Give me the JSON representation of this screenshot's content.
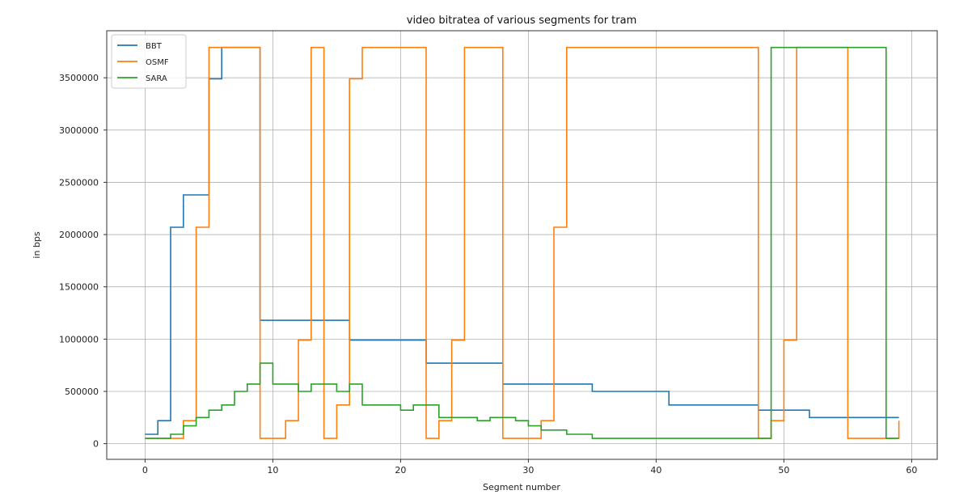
{
  "chart_data": {
    "type": "line",
    "step": "post",
    "title": "video bitratea of various segments for tram",
    "xlabel": "Segment number",
    "ylabel": "in bps",
    "xlim": [
      -3,
      62
    ],
    "ylim": [
      -150000,
      3950000
    ],
    "xticks": [
      0,
      10,
      20,
      30,
      40,
      50,
      60
    ],
    "yticks": [
      0,
      500000,
      1000000,
      1500000,
      2000000,
      2500000,
      3000000,
      3500000
    ],
    "grid": true,
    "legend": "top-left",
    "series": [
      {
        "name": "BBT",
        "color": "#1f77b4",
        "x": [
          0,
          1,
          2,
          3,
          4,
          5,
          6,
          9,
          10,
          11,
          12,
          13,
          14,
          15,
          16,
          17,
          18,
          19,
          20,
          21,
          22,
          23,
          24,
          25,
          26,
          27,
          28,
          29,
          30,
          31,
          32,
          33,
          34,
          35,
          36,
          37,
          38,
          39,
          40,
          41,
          42,
          43,
          44,
          45,
          46,
          47,
          48,
          49,
          50,
          51,
          52,
          53,
          54,
          55,
          56,
          57,
          58,
          59
        ],
        "values": [
          90000,
          220000,
          2070000,
          2380000,
          2380000,
          3490000,
          3790000,
          1180000,
          1180000,
          1180000,
          1180000,
          1180000,
          1180000,
          1180000,
          990000,
          990000,
          990000,
          990000,
          990000,
          990000,
          770000,
          770000,
          770000,
          770000,
          770000,
          770000,
          570000,
          570000,
          570000,
          570000,
          570000,
          570000,
          570000,
          500000,
          500000,
          500000,
          500000,
          500000,
          500000,
          370000,
          370000,
          370000,
          370000,
          370000,
          370000,
          370000,
          320000,
          320000,
          320000,
          320000,
          250000,
          250000,
          250000,
          250000,
          250000,
          250000,
          250000,
          250000
        ]
      },
      {
        "name": "OSMF",
        "color": "#ff7f0e",
        "x": [
          0,
          1,
          2,
          3,
          4,
          5,
          6,
          7,
          8,
          9,
          10,
          11,
          12,
          13,
          14,
          15,
          16,
          17,
          18,
          19,
          20,
          21,
          22,
          23,
          24,
          25,
          26,
          27,
          28,
          29,
          30,
          31,
          32,
          33,
          34,
          35,
          36,
          37,
          38,
          39,
          40,
          41,
          42,
          43,
          44,
          45,
          46,
          47,
          48,
          49,
          50,
          51,
          52,
          53,
          54,
          55,
          56,
          57,
          58,
          59
        ],
        "values": [
          50000,
          50000,
          50000,
          220000,
          2070000,
          3790000,
          3790000,
          3790000,
          3790000,
          50000,
          50000,
          220000,
          990000,
          3790000,
          50000,
          370000,
          3490000,
          3790000,
          3790000,
          3790000,
          3790000,
          3790000,
          50000,
          220000,
          990000,
          3790000,
          3790000,
          3790000,
          50000,
          50000,
          50000,
          220000,
          2070000,
          3790000,
          3790000,
          3790000,
          3790000,
          3790000,
          3790000,
          3790000,
          3790000,
          3790000,
          3790000,
          3790000,
          3790000,
          3790000,
          3790000,
          3790000,
          50000,
          220000,
          990000,
          3790000,
          3790000,
          3790000,
          3790000,
          50000,
          50000,
          50000,
          50000,
          220000
        ]
      },
      {
        "name": "SARA",
        "color": "#2ca02c",
        "x": [
          0,
          1,
          2,
          3,
          4,
          5,
          6,
          7,
          8,
          9,
          10,
          11,
          12,
          13,
          14,
          15,
          16,
          17,
          18,
          19,
          20,
          21,
          22,
          23,
          24,
          25,
          26,
          27,
          28,
          29,
          30,
          31,
          32,
          33,
          34,
          35,
          36,
          37,
          38,
          39,
          40,
          41,
          42,
          43,
          44,
          45,
          46,
          47,
          48,
          49,
          50,
          51,
          52,
          53,
          54,
          55,
          56,
          57,
          58,
          59
        ],
        "values": [
          50000,
          50000,
          90000,
          170000,
          250000,
          320000,
          370000,
          500000,
          570000,
          770000,
          570000,
          570000,
          500000,
          570000,
          570000,
          500000,
          570000,
          370000,
          370000,
          370000,
          320000,
          370000,
          370000,
          250000,
          250000,
          250000,
          220000,
          250000,
          250000,
          220000,
          170000,
          130000,
          130000,
          90000,
          90000,
          50000,
          50000,
          50000,
          50000,
          50000,
          50000,
          50000,
          50000,
          50000,
          50000,
          50000,
          50000,
          50000,
          50000,
          3790000,
          3790000,
          3790000,
          3790000,
          3790000,
          3790000,
          3790000,
          3790000,
          3790000,
          50000,
          50000
        ]
      }
    ]
  }
}
